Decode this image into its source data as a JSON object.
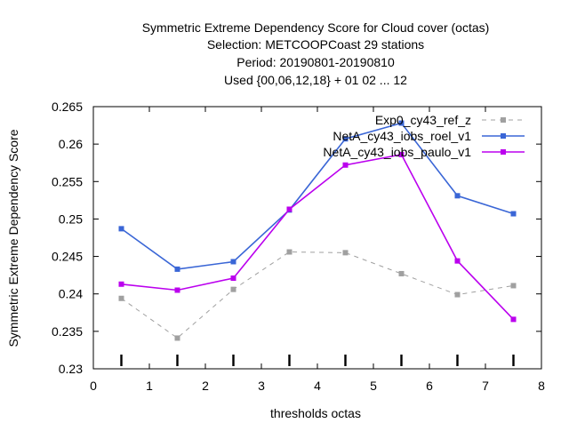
{
  "chart_data": {
    "type": "line",
    "title_lines": [
      "Symmetric Extreme Dependency Score  for Cloud cover (octas)",
      "Selection: METCOOPCoast     29 stations",
      "Period: 20190801-20190810",
      "Used {00,06,12,18} + 01 02 ... 12"
    ],
    "xlabel": "thresholds octas",
    "ylabel": "Symmetric Extreme Dependency Score",
    "xlim": [
      0,
      8
    ],
    "ylim": [
      0.23,
      0.265
    ],
    "x_ticks": [
      "0",
      "1",
      "2",
      "3",
      "4",
      "5",
      "6",
      "7",
      "8"
    ],
    "y_ticks": [
      "0.23",
      "0.235",
      "0.24",
      "0.245",
      "0.25",
      "0.255",
      "0.26",
      "0.265"
    ],
    "x": [
      0.5,
      1.5,
      2.5,
      3.5,
      4.5,
      5.5,
      6.5,
      7.5
    ],
    "legend_position": "top-right",
    "series": [
      {
        "name": "Exp0_cy43_ref_z",
        "color": "#a0a0a0",
        "dashed": true,
        "values": [
          0.2394,
          0.2341,
          0.2406,
          0.2456,
          0.2455,
          0.2427,
          0.2399,
          0.2411
        ]
      },
      {
        "name": "NetA_cy43_iobs_roel_v1",
        "color": "#3a66d6",
        "dashed": false,
        "values": [
          0.2487,
          0.2433,
          0.2443,
          0.2512,
          0.2607,
          0.2628,
          0.2531,
          0.2507
        ]
      },
      {
        "name": "NetA_cy43_iobs_paulo_v1",
        "color": "#bb00ee",
        "dashed": false,
        "values": [
          0.2413,
          0.2405,
          0.2421,
          0.2513,
          0.2572,
          0.2586,
          0.2444,
          0.2366
        ]
      }
    ]
  }
}
